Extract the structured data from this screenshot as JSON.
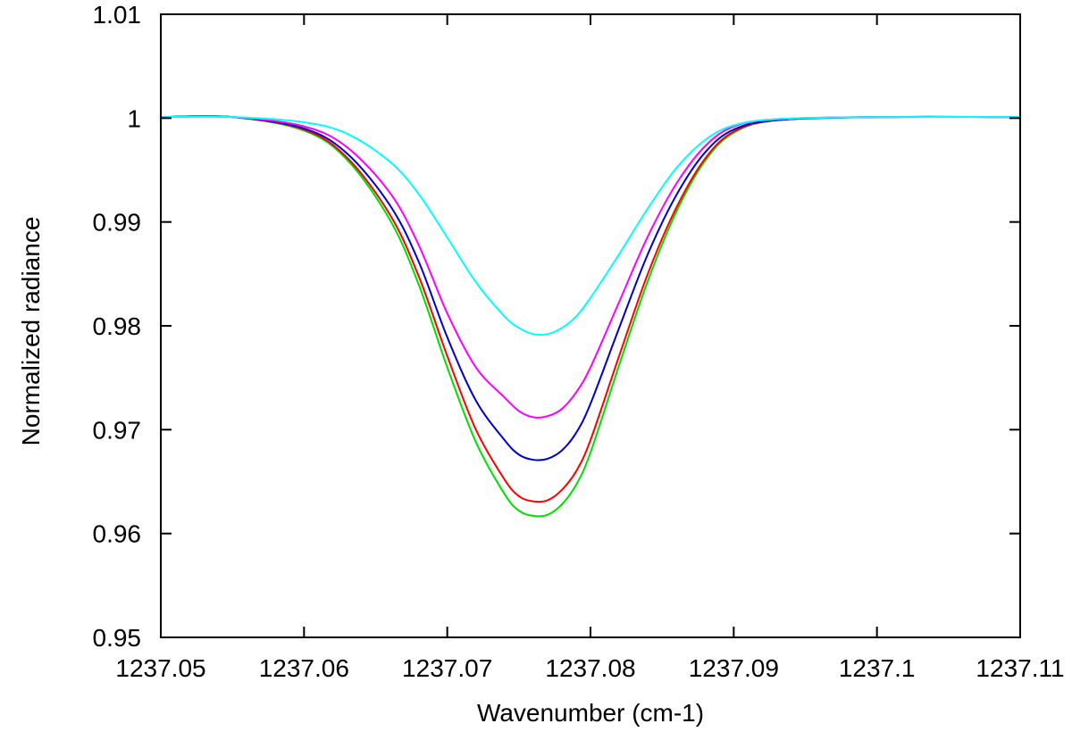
{
  "chart_data": {
    "type": "line",
    "title": "",
    "xlabel": "Wavenumber (cm-1)",
    "ylabel": "Normalized radiance",
    "xlim": [
      1237.05,
      1237.11
    ],
    "ylim": [
      0.95,
      1.01
    ],
    "xticks": [
      {
        "value": 1237.05,
        "label": "1237.05"
      },
      {
        "value": 1237.06,
        "label": "1237.06"
      },
      {
        "value": 1237.07,
        "label": "1237.07"
      },
      {
        "value": 1237.08,
        "label": "1237.08"
      },
      {
        "value": 1237.09,
        "label": "1237.09"
      },
      {
        "value": 1237.1,
        "label": "1237.1"
      },
      {
        "value": 1237.11,
        "label": "1237.11"
      }
    ],
    "yticks": [
      {
        "value": 0.95,
        "label": "0.95"
      },
      {
        "value": 0.96,
        "label": "0.96"
      },
      {
        "value": 0.97,
        "label": "0.97"
      },
      {
        "value": 0.98,
        "label": "0.98"
      },
      {
        "value": 0.99,
        "label": "0.99"
      },
      {
        "value": 1.0,
        "label": "1"
      },
      {
        "value": 1.01,
        "label": "1.01"
      }
    ],
    "grid": false,
    "legend": "none",
    "x": [
      1237.05,
      1237.055,
      1237.06,
      1237.063,
      1237.066,
      1237.068,
      1237.07,
      1237.072,
      1237.074,
      1237.075,
      1237.076,
      1237.077,
      1237.078,
      1237.079,
      1237.08,
      1237.082,
      1237.084,
      1237.086,
      1237.088,
      1237.09,
      1237.093,
      1237.1,
      1237.11
    ],
    "series": [
      {
        "color": "#00ffff",
        "values": [
          1.0001,
          1.0001,
          0.9996,
          0.9985,
          0.9958,
          0.9927,
          0.9885,
          0.9842,
          0.9809,
          0.9798,
          0.9792,
          0.9792,
          0.9798,
          0.9809,
          0.9827,
          0.9869,
          0.9913,
          0.9952,
          0.9979,
          0.9993,
          0.9999,
          1.0001,
          1.0001
        ]
      },
      {
        "color": "#ff00ff",
        "values": [
          1.0001,
          1.0001,
          0.9992,
          0.9972,
          0.9928,
          0.9878,
          0.9812,
          0.976,
          0.9731,
          0.9718,
          0.9712,
          0.9713,
          0.972,
          0.9736,
          0.976,
          0.9823,
          0.9886,
          0.9937,
          0.9973,
          0.9992,
          0.9999,
          1.0001,
          1.0001
        ]
      },
      {
        "color": "#0000cd",
        "values": [
          1.0001,
          1.0001,
          0.999,
          0.9966,
          0.9916,
          0.9862,
          0.9789,
          0.9728,
          0.969,
          0.9676,
          0.9671,
          0.9672,
          0.968,
          0.9697,
          0.9725,
          0.9798,
          0.9869,
          0.9926,
          0.9967,
          0.9989,
          0.9998,
          1.0001,
          1.0001
        ]
      },
      {
        "color": "#ff0000",
        "values": [
          1.0001,
          1.0001,
          0.9989,
          0.9962,
          0.9907,
          0.9848,
          0.9771,
          0.97,
          0.9652,
          0.9636,
          0.9631,
          0.9632,
          0.9642,
          0.966,
          0.969,
          0.9771,
          0.985,
          0.9914,
          0.9961,
          0.9987,
          0.9998,
          1.0001,
          1.0001
        ]
      },
      {
        "color": "#00e000",
        "values": [
          1.0001,
          1.0001,
          0.9988,
          0.996,
          0.9902,
          0.984,
          0.976,
          0.9688,
          0.9638,
          0.9622,
          0.9617,
          0.9618,
          0.9628,
          0.9647,
          0.9678,
          0.9762,
          0.9843,
          0.991,
          0.9959,
          0.9986,
          0.9998,
          1.0001,
          1.0001
        ]
      }
    ]
  }
}
